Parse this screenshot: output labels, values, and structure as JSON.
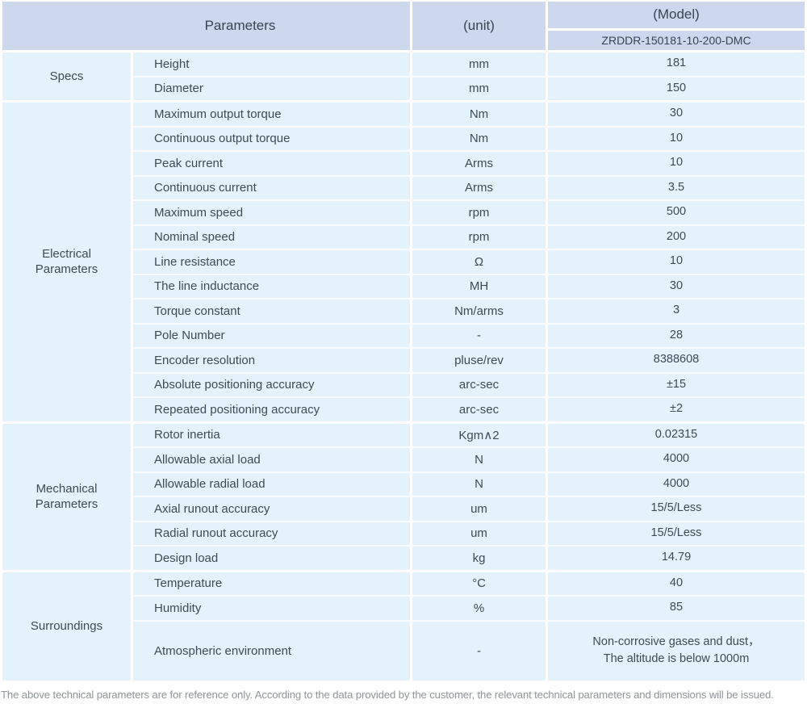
{
  "table": {
    "header": {
      "parameters_label": "Parameters",
      "unit_label": "(unit)",
      "model_label": "(Model)",
      "model_value": "ZRDDR-150181-10-200-DMC"
    },
    "sections": [
      {
        "label": "Specs",
        "rows": [
          {
            "parameter": "Height",
            "unit": "mm",
            "value": "181"
          },
          {
            "parameter": "Diameter",
            "unit": "mm",
            "value": "150"
          }
        ]
      },
      {
        "label": "Electrical\nParameters",
        "rows": [
          {
            "parameter": "Maximum output torque",
            "unit": "Nm",
            "value": "30"
          },
          {
            "parameter": "Continuous output torque",
            "unit": "Nm",
            "value": "10"
          },
          {
            "parameter": "Peak current",
            "unit": "Arms",
            "value": "10"
          },
          {
            "parameter": "Continuous current",
            "unit": "Arms",
            "value": "3.5"
          },
          {
            "parameter": "Maximum speed",
            "unit": "rpm",
            "value": "500"
          },
          {
            "parameter": "Nominal speed",
            "unit": "rpm",
            "value": "200"
          },
          {
            "parameter": "Line resistance",
            "unit": "Ω",
            "value": "10"
          },
          {
            "parameter": "The line inductance",
            "unit": "MH",
            "value": "30"
          },
          {
            "parameter": "Torque constant",
            "unit": "Nm/arms",
            "value": "3"
          },
          {
            "parameter": "Pole Number",
            "unit": "-",
            "value": "28"
          },
          {
            "parameter": "Encoder resolution",
            "unit": "pluse/rev",
            "value": "8388608"
          },
          {
            "parameter": "Absolute positioning accuracy",
            "unit": "arc-sec",
            "value": "±15"
          },
          {
            "parameter": "Repeated positioning accuracy",
            "unit": "arc-sec",
            "value": "±2"
          }
        ]
      },
      {
        "label": "Mechanical\nParameters",
        "rows": [
          {
            "parameter": "Rotor inertia",
            "unit": "Kgm∧2",
            "value": "0.02315"
          },
          {
            "parameter": "Allowable axial load",
            "unit": "N",
            "value": "4000"
          },
          {
            "parameter": "Allowable radial load",
            "unit": "N",
            "value": "4000"
          },
          {
            "parameter": "Axial runout accuracy",
            "unit": "um",
            "value": "15/5/Less"
          },
          {
            "parameter": "Radial runout accuracy",
            "unit": "um",
            "value": "15/5/Less"
          },
          {
            "parameter": "Design load",
            "unit": "kg",
            "value": "14.79"
          }
        ]
      },
      {
        "label": "Surroundings",
        "rows": [
          {
            "parameter": "Temperature",
            "unit": "°C",
            "value": "40"
          },
          {
            "parameter": "Humidity",
            "unit": "%",
            "value": "85"
          },
          {
            "parameter": "Atmospheric environment",
            "unit": "-",
            "value": "Non-corrosive gases and dust，\nThe altitude is below 1000m",
            "tall": true
          }
        ]
      }
    ]
  },
  "footnote": "The above technical parameters are for reference only. According to the data provided by the customer, the relevant technical parameters and dimensions will be issued.",
  "colors": {
    "header_bg": "#cdd7ee",
    "row_bg": "#e4f2fc",
    "grid_white": "#ffffff",
    "row_separator": "#f9fcfe",
    "text": "#3f4a55",
    "footnote_text": "#8f959b"
  }
}
